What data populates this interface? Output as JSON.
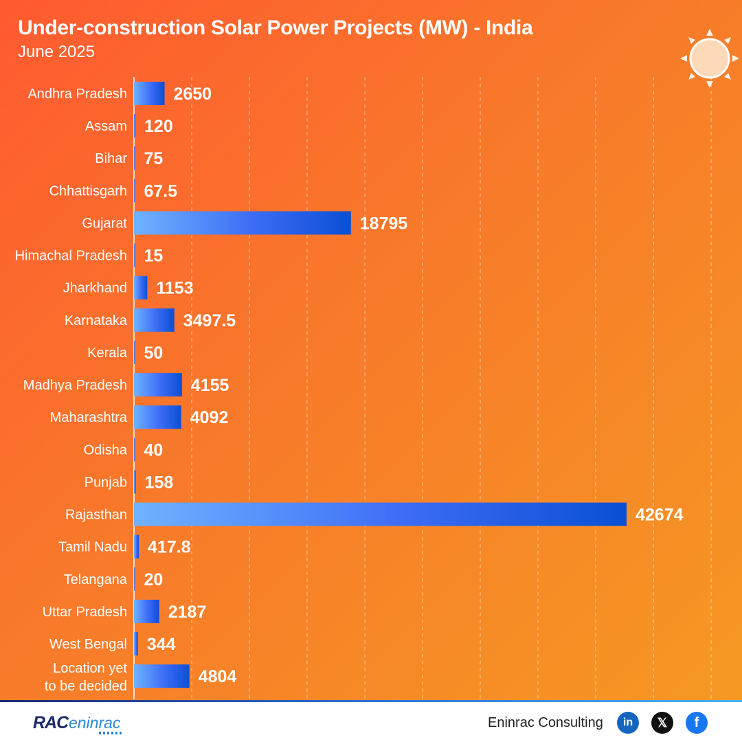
{
  "header": {
    "title": "Under-construction Solar Power Projects (MW) - India",
    "subtitle": "June 2025"
  },
  "icons": {
    "decoration": "sun-icon"
  },
  "colors": {
    "background_start": "#ff5a30",
    "background_end": "#f59a22",
    "bar_light": "#6fb3ff",
    "bar_mid": "#3d6cf6",
    "bar_dark": "#0a4fd4"
  },
  "chart_data": {
    "type": "bar",
    "orientation": "horizontal",
    "categories": [
      "Andhra Pradesh",
      "Assam",
      "Bihar",
      "Chhattisgarh",
      "Gujarat",
      "Himachal Pradesh",
      "Jharkhand",
      "Karnataka",
      "Kerala",
      "Madhya Pradesh",
      "Maharashtra",
      "Odisha",
      "Punjab",
      "Rajasthan",
      "Tamil Nadu",
      "Telangana",
      "Uttar Pradesh",
      "West Bengal",
      "Location yet to be decided"
    ],
    "category_lines": [
      [
        "Andhra Pradesh"
      ],
      [
        "Assam"
      ],
      [
        "Bihar"
      ],
      [
        "Chhattisgarh"
      ],
      [
        "Gujarat"
      ],
      [
        "Himachal Pradesh"
      ],
      [
        "Jharkhand"
      ],
      [
        "Karnataka"
      ],
      [
        "Kerala"
      ],
      [
        "Madhya Pradesh"
      ],
      [
        "Maharashtra"
      ],
      [
        "Odisha"
      ],
      [
        "Punjab"
      ],
      [
        "Rajasthan"
      ],
      [
        "Tamil Nadu"
      ],
      [
        "Telangana"
      ],
      [
        "Uttar Pradesh"
      ],
      [
        "West Bengal"
      ],
      [
        "Location yet",
        "to be decided"
      ]
    ],
    "values": [
      2650,
      120,
      75,
      67.5,
      18795,
      15,
      1153,
      3497.5,
      50,
      4155,
      4092,
      40,
      158,
      42674,
      417.8,
      20,
      2187,
      344,
      4804
    ],
    "value_labels": [
      "2650",
      "120",
      "75",
      "67.5",
      "18795",
      "15",
      "1153",
      "3497.5",
      "50",
      "4155",
      "4092",
      "40",
      "158",
      "42674",
      "417.8",
      "20",
      "2187",
      "344",
      "4804"
    ],
    "xlim": [
      0,
      50000
    ],
    "grid": true,
    "grid_style": "dashed vertical",
    "legend": "none"
  },
  "footer": {
    "logo_mark": "RAC",
    "logo_word": "eninrac",
    "brand": "Eninrac Consulting",
    "linkedin_label": "in",
    "x_label": "𝕏",
    "facebook_label": "f",
    "linkedin_icon": "linkedin-icon",
    "x_icon": "x-icon",
    "facebook_icon": "facebook-icon"
  }
}
